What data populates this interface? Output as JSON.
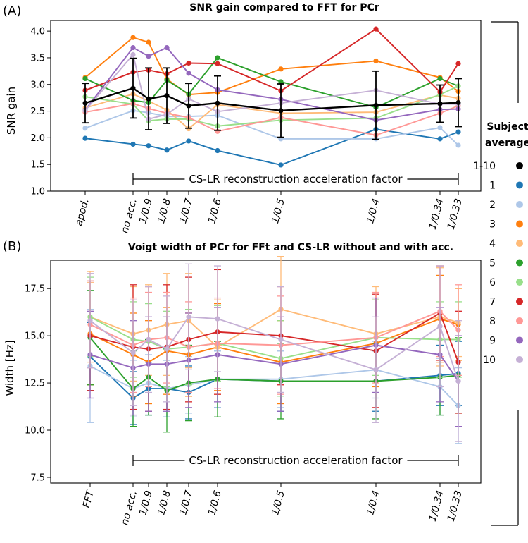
{
  "panel_labels": [
    "(A)",
    "(B)"
  ],
  "legend": {
    "title_line1": "Subject",
    "title_line2": "average",
    "entries": [
      {
        "label": "1-10",
        "color": "#000000"
      },
      {
        "label": "1",
        "color": "#1f77b4"
      },
      {
        "label": "2",
        "color": "#aec7e8"
      },
      {
        "label": "3",
        "color": "#ff7f0e"
      },
      {
        "label": "4",
        "color": "#ffbb78"
      },
      {
        "label": "5",
        "color": "#2ca02c"
      },
      {
        "label": "6",
        "color": "#98df8a"
      },
      {
        "label": "7",
        "color": "#d62728"
      },
      {
        "label": "8",
        "color": "#ff9896"
      },
      {
        "label": "9",
        "color": "#9467bd"
      },
      {
        "label": "10",
        "color": "#c5b0d5"
      }
    ]
  },
  "chart_data": [
    {
      "type": "line",
      "title": "SNR gain compared to FFT for PCr",
      "xlabel": "",
      "ylabel": "SNR gain",
      "annotation": "CS-LR reconstruction acceleration factor",
      "categories": [
        "apod.",
        "no acc.",
        "1/0.9",
        "1/0.8",
        "1/0.7",
        "1/0.6",
        "1/0.5",
        "1/0.4",
        "1/0.34",
        "1/0.33"
      ],
      "x": [
        0,
        1,
        1.111,
        1.25,
        1.429,
        1.667,
        2,
        2.5,
        2.941,
        3.03
      ],
      "ylim": [
        1.0,
        4.2
      ],
      "yticks": [
        "1.0",
        "1.5",
        "2.0",
        "2.5",
        "3.0",
        "3.5",
        "4.0"
      ],
      "series": [
        {
          "name": "1",
          "values": [
            1.99,
            1.88,
            1.85,
            1.77,
            1.94,
            1.76,
            1.49,
            2.16,
            1.98,
            2.11
          ]
        },
        {
          "name": "2",
          "values": [
            2.18,
            2.51,
            2.47,
            2.4,
            2.4,
            2.42,
            1.98,
            1.98,
            2.19,
            1.86
          ]
        },
        {
          "name": "3",
          "values": [
            3.13,
            3.88,
            3.79,
            3.1,
            2.81,
            2.85,
            3.29,
            3.44,
            3.13,
            2.87
          ]
        },
        {
          "name": "4",
          "values": [
            2.56,
            2.82,
            2.69,
            2.52,
            2.17,
            2.62,
            2.46,
            2.48,
            2.8,
            2.74
          ]
        },
        {
          "name": "5",
          "values": [
            3.11,
            2.7,
            2.66,
            3.08,
            2.82,
            3.5,
            3.05,
            2.57,
            3.11,
            2.97
          ]
        },
        {
          "name": "6",
          "values": [
            2.77,
            2.63,
            2.32,
            2.35,
            2.35,
            2.22,
            2.33,
            2.37,
            2.81,
            2.97
          ]
        },
        {
          "name": "7",
          "values": [
            2.89,
            3.23,
            3.27,
            3.2,
            3.4,
            3.39,
            2.88,
            4.04,
            2.86,
            3.39
          ]
        },
        {
          "name": "8",
          "values": [
            2.48,
            2.64,
            2.55,
            2.46,
            2.38,
            2.12,
            2.38,
            2.05,
            2.46,
            2.6
          ]
        },
        {
          "name": "9",
          "values": [
            2.52,
            3.69,
            3.53,
            3.69,
            3.21,
            2.9,
            2.72,
            2.33,
            2.53,
            2.54
          ]
        },
        {
          "name": "10",
          "values": [
            2.51,
            3.56,
            2.35,
            2.44,
            2.73,
            2.49,
            2.65,
            2.89,
            2.63,
            2.63
          ]
        },
        {
          "name": "1-10",
          "values": [
            2.65,
            2.93,
            2.73,
            2.79,
            2.6,
            2.65,
            2.51,
            2.61,
            2.64,
            2.66
          ],
          "err": [
            0.37,
            0.56,
            0.58,
            0.52,
            0.42,
            0.51,
            0.5,
            0.64,
            0.35,
            0.45
          ]
        }
      ]
    },
    {
      "type": "line",
      "title": "Voigt width of PCr for FFt and CS-LR without and with acc.",
      "xlabel": "",
      "ylabel": "Width [Hz]",
      "annotation": "CS-LR reconstruction acceleration factor",
      "categories": [
        "FFT",
        "no acc,",
        "1/0.9",
        "1/0.8",
        "1/0.7",
        "1/0.6",
        "1/0.5",
        "1/0.4",
        "1/0.34",
        "1/0.33"
      ],
      "x": [
        0,
        1,
        1.111,
        1.25,
        1.429,
        1.667,
        2,
        2.5,
        2.941,
        3.03
      ],
      "ylim": [
        7.2,
        19.0
      ],
      "yticks": [
        "7.5",
        "10.0",
        "12.5",
        "15.0",
        "17.5"
      ],
      "series": [
        {
          "name": "1",
          "values": [
            13.9,
            11.7,
            12.2,
            12.2,
            12.0,
            12.7,
            12.6,
            12.6,
            12.9,
            13.0
          ],
          "err": [
            1.8,
            1.4,
            1.4,
            1.5,
            1.4,
            1.5,
            1.6,
            1.6,
            1.6,
            1.7
          ]
        },
        {
          "name": "2",
          "values": [
            13.4,
            12.2,
            12.5,
            12.2,
            12.4,
            12.7,
            12.7,
            13.2,
            12.3,
            11.3
          ],
          "err": [
            3.0,
            1.5,
            1.5,
            1.5,
            1.5,
            1.5,
            1.5,
            1.5,
            1.5,
            2.0
          ]
        },
        {
          "name": "3",
          "values": [
            15.1,
            14.0,
            13.6,
            14.2,
            14.0,
            14.4,
            13.6,
            14.6,
            15.9,
            15.6
          ],
          "err": [
            2.7,
            2.2,
            2.2,
            2.3,
            2.2,
            2.3,
            2.2,
            2.3,
            2.3,
            1.9
          ]
        },
        {
          "name": "4",
          "values": [
            16.0,
            15.1,
            15.3,
            15.6,
            15.8,
            14.4,
            16.4,
            15.1,
            16.0,
            15.7
          ],
          "err": [
            2.4,
            2.5,
            2.4,
            2.7,
            2.5,
            2.5,
            2.8,
            2.5,
            2.6,
            1.8
          ]
        },
        {
          "name": "5",
          "values": [
            14.9,
            12.2,
            12.8,
            12.1,
            12.5,
            12.7,
            12.6,
            12.6,
            12.8,
            12.9
          ],
          "err": [
            2.5,
            2.0,
            2.0,
            2.2,
            2.0,
            2.0,
            2.0,
            2.0,
            2.0,
            2.0
          ]
        },
        {
          "name": "6",
          "values": [
            16.0,
            14.8,
            14.7,
            14.3,
            14.4,
            14.6,
            13.8,
            14.9,
            14.8,
            14.8
          ],
          "err": [
            2.1,
            2.0,
            2.0,
            2.0,
            2.0,
            2.0,
            2.0,
            2.0,
            2.0,
            2.0
          ]
        },
        {
          "name": "7",
          "values": [
            15.0,
            14.4,
            14.3,
            14.4,
            14.8,
            15.2,
            15.0,
            14.2,
            16.2,
            13.6
          ],
          "err": [
            2.9,
            3.3,
            3.3,
            3.3,
            3.3,
            3.3,
            2.6,
            3.0,
            2.5,
            2.7
          ]
        },
        {
          "name": "8",
          "values": [
            15.6,
            14.5,
            14.8,
            14.9,
            14.4,
            14.6,
            14.5,
            14.9,
            16.3,
            15.3
          ],
          "err": [
            2.3,
            2.5,
            2.5,
            2.4,
            2.4,
            2.4,
            2.6,
            2.4,
            2.4,
            2.4
          ]
        },
        {
          "name": "9",
          "values": [
            14.0,
            13.3,
            13.5,
            13.5,
            13.7,
            14.0,
            13.5,
            14.5,
            14.0,
            12.6
          ],
          "err": [
            2.3,
            2.5,
            2.5,
            2.5,
            2.5,
            2.5,
            2.5,
            2.5,
            2.5,
            2.4
          ]
        },
        {
          "name": "10",
          "values": [
            15.8,
            14.1,
            14.8,
            14.3,
            16.0,
            15.9,
            14.8,
            13.2,
            15.5,
            12.6
          ],
          "err": [
            2.5,
            2.8,
            2.8,
            2.8,
            2.8,
            2.8,
            2.8,
            2.8,
            3.2,
            3.2
          ]
        }
      ]
    }
  ]
}
